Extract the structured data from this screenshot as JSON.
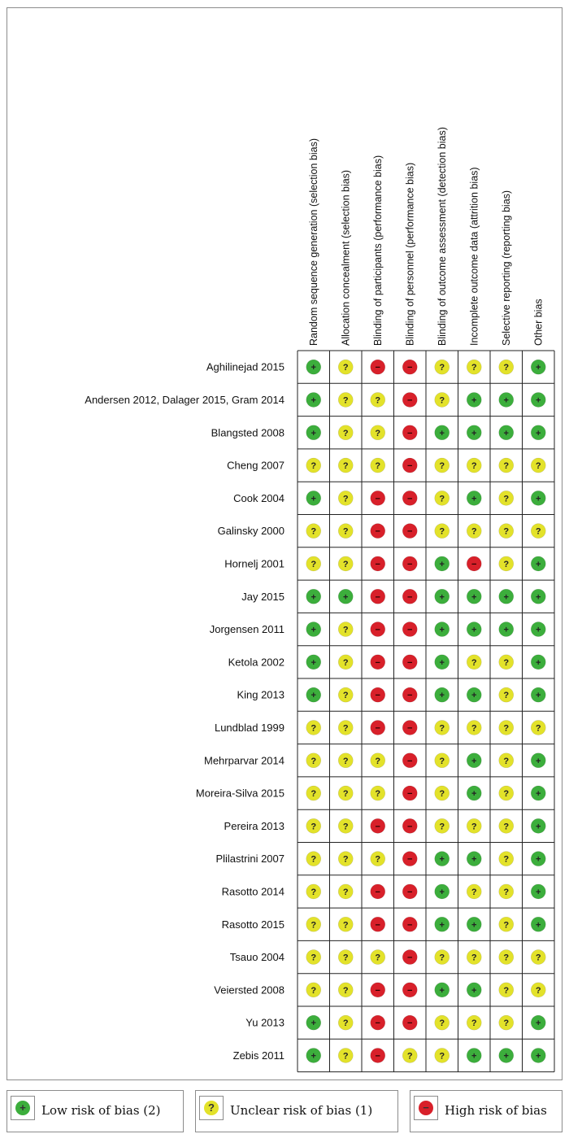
{
  "chart_data": {
    "type": "table",
    "domains": [
      "Random sequence generation (selection bias)",
      "Allocation concealment (selection bias)",
      "Blinding of participants (performance bias)",
      "Blinding of personnel (performance bias)",
      "Blinding of outcome assessment (detection bias)",
      "Incomplete outcome data (attrition bias)",
      "Selective reporting (reporting bias)",
      "Other bias"
    ],
    "studies": [
      {
        "name": "Aghilinejad 2015",
        "ratings": [
          "low",
          "unclear",
          "high",
          "high",
          "unclear",
          "unclear",
          "unclear",
          "low"
        ]
      },
      {
        "name": "Andersen 2012, Dalager 2015, Gram 2014",
        "ratings": [
          "low",
          "unclear",
          "unclear",
          "high",
          "unclear",
          "low",
          "low",
          "low"
        ]
      },
      {
        "name": "Blangsted 2008",
        "ratings": [
          "low",
          "unclear",
          "unclear",
          "high",
          "low",
          "low",
          "low",
          "low"
        ]
      },
      {
        "name": "Cheng 2007",
        "ratings": [
          "unclear",
          "unclear",
          "unclear",
          "high",
          "unclear",
          "unclear",
          "unclear",
          "unclear"
        ]
      },
      {
        "name": "Cook 2004",
        "ratings": [
          "low",
          "unclear",
          "high",
          "high",
          "unclear",
          "low",
          "unclear",
          "low"
        ]
      },
      {
        "name": "Galinsky 2000",
        "ratings": [
          "unclear",
          "unclear",
          "high",
          "high",
          "unclear",
          "unclear",
          "unclear",
          "unclear"
        ]
      },
      {
        "name": "Hornelj 2001",
        "ratings": [
          "unclear",
          "unclear",
          "high",
          "high",
          "low",
          "high",
          "unclear",
          "low"
        ]
      },
      {
        "name": "Jay 2015",
        "ratings": [
          "low",
          "low",
          "high",
          "high",
          "low",
          "low",
          "low",
          "low"
        ]
      },
      {
        "name": "Jorgensen 2011",
        "ratings": [
          "low",
          "unclear",
          "high",
          "high",
          "low",
          "low",
          "low",
          "low"
        ]
      },
      {
        "name": "Ketola 2002",
        "ratings": [
          "low",
          "unclear",
          "high",
          "high",
          "low",
          "unclear",
          "unclear",
          "low"
        ]
      },
      {
        "name": "King 2013",
        "ratings": [
          "low",
          "unclear",
          "high",
          "high",
          "low",
          "low",
          "unclear",
          "low"
        ]
      },
      {
        "name": "Lundblad 1999",
        "ratings": [
          "unclear",
          "unclear",
          "high",
          "high",
          "unclear",
          "unclear",
          "unclear",
          "unclear"
        ]
      },
      {
        "name": "Mehrparvar 2014",
        "ratings": [
          "unclear",
          "unclear",
          "unclear",
          "high",
          "unclear",
          "low",
          "unclear",
          "low"
        ]
      },
      {
        "name": "Moreira-Silva 2015",
        "ratings": [
          "unclear",
          "unclear",
          "unclear",
          "high",
          "unclear",
          "low",
          "unclear",
          "low"
        ]
      },
      {
        "name": "Pereira 2013",
        "ratings": [
          "unclear",
          "unclear",
          "high",
          "high",
          "unclear",
          "unclear",
          "unclear",
          "low"
        ]
      },
      {
        "name": "Plilastrini 2007",
        "ratings": [
          "unclear",
          "unclear",
          "unclear",
          "high",
          "low",
          "low",
          "unclear",
          "low"
        ]
      },
      {
        "name": "Rasotto 2014",
        "ratings": [
          "unclear",
          "unclear",
          "high",
          "high",
          "low",
          "unclear",
          "unclear",
          "low"
        ]
      },
      {
        "name": "Rasotto 2015",
        "ratings": [
          "unclear",
          "unclear",
          "high",
          "high",
          "low",
          "low",
          "unclear",
          "low"
        ]
      },
      {
        "name": "Tsauo 2004",
        "ratings": [
          "unclear",
          "unclear",
          "unclear",
          "high",
          "unclear",
          "unclear",
          "unclear",
          "unclear"
        ]
      },
      {
        "name": "Veiersted 2008",
        "ratings": [
          "unclear",
          "unclear",
          "high",
          "high",
          "low",
          "low",
          "unclear",
          "unclear"
        ]
      },
      {
        "name": "Yu 2013",
        "ratings": [
          "low",
          "unclear",
          "high",
          "high",
          "unclear",
          "unclear",
          "unclear",
          "low"
        ]
      },
      {
        "name": "Zebis 2011",
        "ratings": [
          "low",
          "unclear",
          "high",
          "unclear",
          "unclear",
          "low",
          "low",
          "low"
        ]
      }
    ],
    "symbols": {
      "low": "+",
      "unclear": "?",
      "high": "−"
    },
    "colors": {
      "low": "#3cae3c",
      "unclear": "#e3e22a",
      "high": "#d8202a",
      "grid": "#222222"
    }
  },
  "legend": {
    "low_label": "Low risk of bias (2)",
    "unclear_label": "Unclear risk of bias (1)",
    "high_label": "High risk of bias"
  }
}
